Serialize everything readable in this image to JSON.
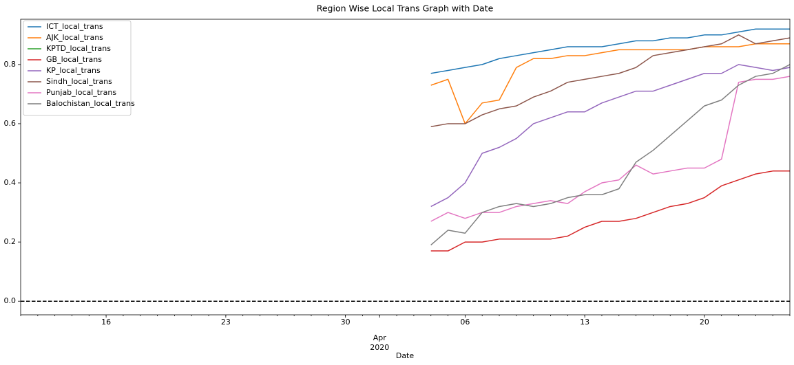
{
  "chart_data": {
    "type": "line",
    "title": "Region Wise Local Trans Graph with Date",
    "xlabel": "Date",
    "x": [
      "2020-04-04",
      "2020-04-05",
      "2020-04-06",
      "2020-04-07",
      "2020-04-08",
      "2020-04-09",
      "2020-04-10",
      "2020-04-11",
      "2020-04-12",
      "2020-04-13",
      "2020-04-14",
      "2020-04-15",
      "2020-04-16",
      "2020-04-17",
      "2020-04-18",
      "2020-04-19",
      "2020-04-20",
      "2020-04-21",
      "2020-04-22",
      "2020-04-23",
      "2020-04-24",
      "2020-04-25"
    ],
    "series": [
      {
        "name": "ICT_local_trans",
        "color": "#1f77b4",
        "values": [
          0.77,
          0.78,
          0.79,
          0.8,
          0.82,
          0.83,
          0.84,
          0.85,
          0.86,
          0.86,
          0.86,
          0.87,
          0.88,
          0.88,
          0.89,
          0.89,
          0.9,
          0.9,
          0.91,
          0.92,
          0.92,
          0.92
        ]
      },
      {
        "name": "AJK_local_trans",
        "color": "#ff7f0e",
        "values": [
          0.73,
          0.75,
          0.6,
          0.67,
          0.68,
          0.79,
          0.82,
          0.82,
          0.83,
          0.83,
          0.84,
          0.85,
          0.85,
          0.85,
          0.85,
          0.85,
          0.86,
          0.86,
          0.86,
          0.87,
          0.87,
          0.87
        ]
      },
      {
        "name": "KPTD_local_trans",
        "color": "#2ca02c",
        "values": [
          null,
          null,
          null,
          null,
          null,
          null,
          null,
          null,
          null,
          null,
          null,
          null,
          null,
          null,
          null,
          null,
          null,
          null,
          null,
          null,
          null,
          null
        ]
      },
      {
        "name": "GB_local_trans",
        "color": "#d62728",
        "values": [
          0.17,
          0.17,
          0.2,
          0.2,
          0.21,
          0.21,
          0.21,
          0.21,
          0.22,
          0.25,
          0.27,
          0.27,
          0.28,
          0.3,
          0.32,
          0.33,
          0.35,
          0.39,
          0.41,
          0.43,
          0.44,
          0.44
        ]
      },
      {
        "name": "KP_local_trans",
        "color": "#9467bd",
        "values": [
          0.32,
          0.35,
          0.4,
          0.5,
          0.52,
          0.55,
          0.6,
          0.62,
          0.64,
          0.64,
          0.67,
          0.69,
          0.71,
          0.71,
          0.73,
          0.75,
          0.77,
          0.77,
          0.8,
          0.79,
          0.78,
          0.79
        ]
      },
      {
        "name": "Sindh_local_trans",
        "color": "#8c564b",
        "values": [
          0.59,
          0.6,
          0.6,
          0.63,
          0.65,
          0.66,
          0.69,
          0.71,
          0.74,
          0.75,
          0.76,
          0.77,
          0.79,
          0.83,
          0.84,
          0.85,
          0.86,
          0.87,
          0.9,
          0.87,
          0.88,
          0.89
        ]
      },
      {
        "name": "Punjab_local_trans",
        "color": "#e377c2",
        "values": [
          0.27,
          0.3,
          0.28,
          0.3,
          0.3,
          0.32,
          0.33,
          0.34,
          0.33,
          0.37,
          0.4,
          0.41,
          0.46,
          0.43,
          0.44,
          0.45,
          0.45,
          0.48,
          0.74,
          0.75,
          0.75,
          0.76
        ]
      },
      {
        "name": "Balochistan_local_trans",
        "color": "#7f7f7f",
        "values": [
          0.19,
          0.24,
          0.23,
          0.3,
          0.32,
          0.33,
          0.32,
          0.33,
          0.35,
          0.36,
          0.36,
          0.38,
          0.47,
          0.51,
          0.56,
          0.61,
          0.66,
          0.68,
          0.73,
          0.76,
          0.77,
          0.8
        ]
      }
    ],
    "xlim": [
      "2020-03-11",
      "2020-04-25"
    ],
    "xticks": [
      {
        "value": "2020-03-16",
        "label": "16"
      },
      {
        "value": "2020-03-23",
        "label": "23"
      },
      {
        "value": "2020-03-30",
        "label": "30"
      },
      {
        "value": "2020-04-01",
        "label": "Apr"
      },
      {
        "value": "2020-04-06",
        "label": "06"
      },
      {
        "value": "2020-04-13",
        "label": "13"
      },
      {
        "value": "2020-04-20",
        "label": "20"
      }
    ],
    "x_year_label": "2020",
    "ylim": [
      -0.046,
      0.953
    ],
    "yticks": [
      {
        "value": 0,
        "label": "0.0"
      },
      0.2,
      0.4,
      0.6,
      0.8
    ],
    "hline": {
      "value": 0,
      "color": "#000000",
      "style": "dashed"
    },
    "legend": "upper left",
    "grid": false
  }
}
